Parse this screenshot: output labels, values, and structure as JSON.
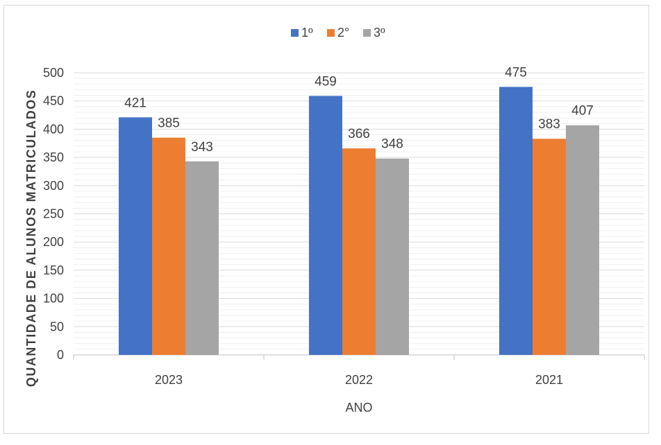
{
  "chart_data": {
    "type": "bar",
    "title": "",
    "xlabel": "ANO",
    "ylabel": "QUANTIDADE DE ALUNOS MATRICULADOS",
    "categories": [
      "2023",
      "2022",
      "2021"
    ],
    "series": [
      {
        "name": "1º",
        "color": "#4472C4",
        "values": [
          421,
          459,
          475
        ]
      },
      {
        "name": "2°",
        "color": "#ED7D31",
        "values": [
          385,
          366,
          383
        ]
      },
      {
        "name": "3º",
        "color": "#A5A5A5",
        "values": [
          343,
          348,
          407
        ]
      }
    ],
    "ylim": [
      0,
      500
    ],
    "yticks": [
      0,
      50,
      100,
      150,
      200,
      250,
      300,
      350,
      400,
      450,
      500
    ],
    "grid": true,
    "legend": "top-center",
    "data_labels": true
  }
}
